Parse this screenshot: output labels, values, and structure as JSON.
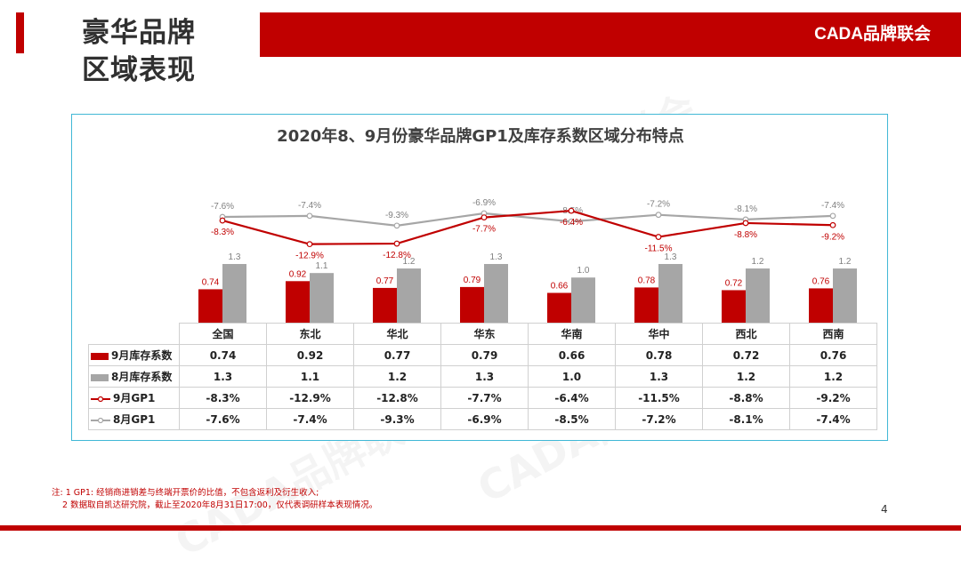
{
  "header": {
    "title_line1": "豪华品牌",
    "title_line2": "区域表现",
    "brand": "CADA品牌联会"
  },
  "colors": {
    "accent_red": "#c00000",
    "gp1_aug_gray": "#a6a6a6",
    "frame_blue": "#41b8d6"
  },
  "chart_data": {
    "type": "bar+line",
    "title": "2020年8、9月份豪华品牌GP1及库存系数区域分布特点",
    "categories": [
      "全国",
      "东北",
      "华北",
      "华东",
      "华南",
      "华中",
      "西北",
      "西南"
    ],
    "series": [
      {
        "name": "9月库存系数",
        "kind": "bar",
        "color": "#c00000",
        "values": [
          0.74,
          0.92,
          0.77,
          0.79,
          0.66,
          0.78,
          0.72,
          0.76
        ],
        "labels": [
          "0.74",
          "0.92",
          "0.77",
          "0.79",
          "0.66",
          "0.78",
          "0.72",
          "0.76"
        ]
      },
      {
        "name": "8月库存系数",
        "kind": "bar",
        "color": "#a6a6a6",
        "values": [
          1.3,
          1.1,
          1.2,
          1.3,
          1.0,
          1.3,
          1.2,
          1.2
        ],
        "labels": [
          "1.3",
          "1.1",
          "1.2",
          "1.3",
          "1.0",
          "1.3",
          "1.2",
          "1.2"
        ]
      },
      {
        "name": "9月GP1",
        "kind": "line",
        "color": "#c00000",
        "values": [
          -8.3,
          -12.9,
          -12.8,
          -7.7,
          -6.4,
          -11.5,
          -8.8,
          -9.2
        ],
        "labels": [
          "-8.3%",
          "-12.9%",
          "-12.8%",
          "-7.7%",
          "-6.4%",
          "-11.5%",
          "-8.8%",
          "-9.2%"
        ]
      },
      {
        "name": "8月GP1",
        "kind": "line",
        "color": "#a6a6a6",
        "values": [
          -7.6,
          -7.4,
          -9.3,
          -6.9,
          -8.5,
          -7.2,
          -8.1,
          -7.4
        ],
        "labels": [
          "-7.6%",
          "-7.4%",
          "-9.3%",
          "-6.9%",
          "-8.5%",
          "-7.2%",
          "-8.1%",
          "-7.4%"
        ]
      }
    ],
    "bar_ylim": [
      0,
      1.3
    ],
    "line_ylim": [
      -14,
      -5
    ],
    "legend": "data-table"
  },
  "notes": {
    "line1": "注: 1  GP1: 经销商进销差与终端开票价的比值，不包含返利及衍生收入;",
    "line2": "2 数据取自凯达研究院，截止至2020年8月31日17:00，仅代表调研样本表现情况。"
  },
  "watermark": "CADA品牌联会",
  "page_number": "4"
}
